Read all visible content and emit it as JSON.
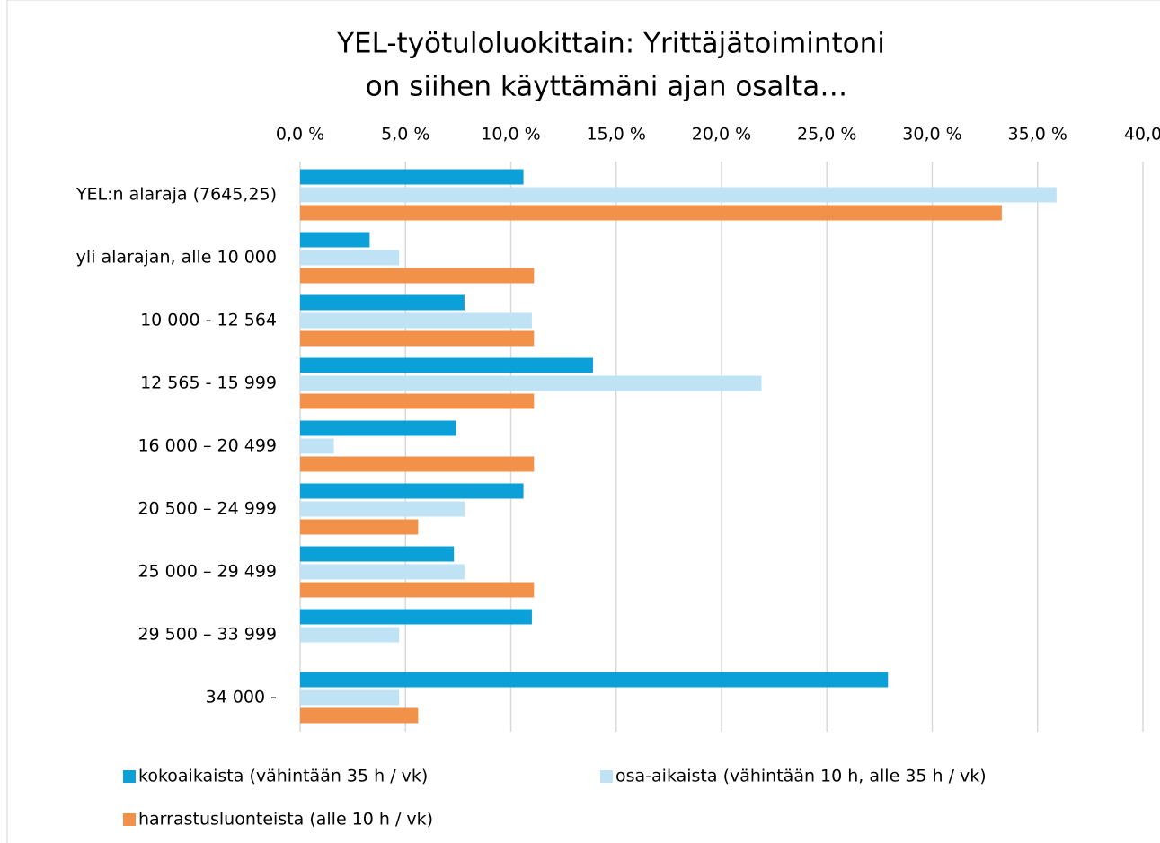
{
  "chart_data": {
    "type": "bar",
    "orientation": "horizontal",
    "title": [
      "YEL-työtuloluokittain: Yrittäjätoimintoni",
      "on siihen käyttämäni ajan osalta…"
    ],
    "categories": [
      "YEL:n alaraja (7645,25)",
      "yli alarajan, alle 10 000",
      "10 000 - 12 564",
      "12 565 - 15 999",
      "16 000 – 20 499",
      "20 500 – 24 999",
      "25 000 – 29 499",
      "29 500 – 33 999",
      "34 000 -"
    ],
    "series": [
      {
        "name": "kokoaikaista (vähintään 35 h / vk)",
        "color": "#0ca0d8",
        "values": [
          10.6,
          3.3,
          7.8,
          13.9,
          7.4,
          10.6,
          7.3,
          11.0,
          27.9
        ]
      },
      {
        "name": "osa-aikaista (vähintään 10 h, alle 35 h / vk)",
        "color": "#bfe3f5",
        "values": [
          35.9,
          4.7,
          11.0,
          21.9,
          1.6,
          7.8,
          7.8,
          4.7,
          4.7
        ]
      },
      {
        "name": "harrastusluonteista (alle 10 h / vk)",
        "color": "#f2924a",
        "values": [
          33.3,
          11.1,
          11.1,
          11.1,
          11.1,
          5.6,
          11.1,
          null,
          5.6
        ]
      }
    ],
    "xlim": [
      0,
      40
    ],
    "xticks": [
      {
        "value": 0,
        "label": "0,0 %"
      },
      {
        "value": 5,
        "label": "5,0 %"
      },
      {
        "value": 10,
        "label": "10,0 %"
      },
      {
        "value": 15,
        "label": "15,0 %"
      },
      {
        "value": 20,
        "label": "20,0 %"
      },
      {
        "value": 25,
        "label": "25,0 %"
      },
      {
        "value": 30,
        "label": "30,0 %"
      },
      {
        "value": 35,
        "label": "35,0 %"
      },
      {
        "value": 40,
        "label": "40,0"
      }
    ],
    "grid": true,
    "legend": "bottom"
  }
}
